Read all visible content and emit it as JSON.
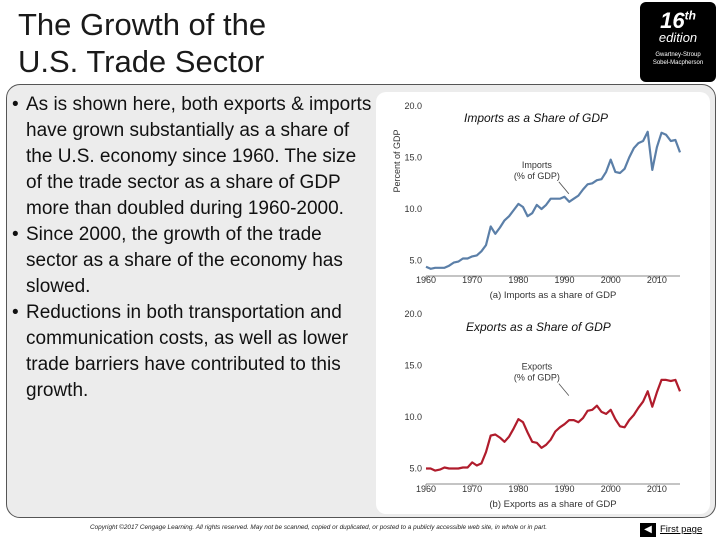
{
  "slide": {
    "title_line1": "The Growth of the",
    "title_line2": "U.S. Trade Sector"
  },
  "badge": {
    "number": "16",
    "suffix": "th",
    "edition": "edition",
    "authors_line1": "Gwartney-Stroup",
    "authors_line2": "Sobel-Macpherson"
  },
  "bullets": [
    "As is shown here, both exports & imports have grown substantially as a share of the U.S. economy since 1960. The size of the trade sector as a share of GDP more than doubled during 1960-2000.",
    "Since 2000, the growth of the trade sector as a share of the economy has slowed.",
    "Reductions in both transportation and communication costs, as well as lower trade barriers have contributed to this growth."
  ],
  "chart_headings": {
    "imports": "Imports as a Share of GDP",
    "exports": "Exports as a Share of GDP"
  },
  "footer": {
    "copyright": "Copyright ©2017 Cengage Learning. All rights reserved. May not be scanned, copied or duplicated, or posted to a publicly accessible web site, in whole or in part.",
    "first_page": "First page",
    "first_page_icon": "arrow-left-icon"
  },
  "colors": {
    "imports_line": "#5b7fa8",
    "exports_line": "#b01c2c",
    "panel": "#ececec"
  },
  "chart_data": [
    {
      "type": "line",
      "title": "(a) Imports as a share of GDP",
      "ylabel": "Percent of GDP",
      "xlabel": "",
      "x_ticks": [
        "1960",
        "1970",
        "1980",
        "1990",
        "2000",
        "2010"
      ],
      "y_ticks": [
        "20.0",
        "15.0",
        "10.0",
        "5.0"
      ],
      "xlim": [
        1960,
        2015
      ],
      "ylim": [
        3.5,
        20
      ],
      "series": [
        {
          "name": "Imports (% of GDP)",
          "x": [
            1960,
            1961,
            1962,
            1963,
            1964,
            1965,
            1966,
            1967,
            1968,
            1969,
            1970,
            1971,
            1972,
            1973,
            1974,
            1975,
            1976,
            1977,
            1978,
            1979,
            1980,
            1981,
            1982,
            1983,
            1984,
            1985,
            1986,
            1987,
            1988,
            1989,
            1990,
            1991,
            1992,
            1993,
            1994,
            1995,
            1996,
            1997,
            1998,
            1999,
            2000,
            2001,
            2002,
            2003,
            2004,
            2005,
            2006,
            2007,
            2008,
            2009,
            2010,
            2011,
            2012,
            2013,
            2014,
            2015
          ],
          "values": [
            4.4,
            4.2,
            4.3,
            4.3,
            4.3,
            4.5,
            4.8,
            4.9,
            5.2,
            5.2,
            5.4,
            5.5,
            5.9,
            6.5,
            8.3,
            7.6,
            8.2,
            8.9,
            9.3,
            9.9,
            10.5,
            10.2,
            9.3,
            9.6,
            10.4,
            10.0,
            10.4,
            11.0,
            11.0,
            11.0,
            11.2,
            10.7,
            11.0,
            11.3,
            11.9,
            12.4,
            12.5,
            12.8,
            12.9,
            13.6,
            14.8,
            13.6,
            13.5,
            13.9,
            15.0,
            15.9,
            16.4,
            16.6,
            17.5,
            13.8,
            16.0,
            17.4,
            17.2,
            16.6,
            16.7,
            15.5
          ]
        }
      ]
    },
    {
      "type": "line",
      "title": "(b) Exports as a share of GDP",
      "ylabel": "",
      "xlabel": "",
      "x_ticks": [
        "1960",
        "1970",
        "1980",
        "1990",
        "2000",
        "2010"
      ],
      "y_ticks": [
        "20.0",
        "15.0",
        "10.0",
        "5.0"
      ],
      "xlim": [
        1960,
        2015
      ],
      "ylim": [
        3.5,
        20
      ],
      "series": [
        {
          "name": "Exports (% of GDP)",
          "x": [
            1960,
            1961,
            1962,
            1963,
            1964,
            1965,
            1966,
            1967,
            1968,
            1969,
            1970,
            1971,
            1972,
            1973,
            1974,
            1975,
            1976,
            1977,
            1978,
            1979,
            1980,
            1981,
            1982,
            1983,
            1984,
            1985,
            1986,
            1987,
            1988,
            1989,
            1990,
            1991,
            1992,
            1993,
            1994,
            1995,
            1996,
            1997,
            1998,
            1999,
            2000,
            2001,
            2002,
            2003,
            2004,
            2005,
            2006,
            2007,
            2008,
            2009,
            2010,
            2011,
            2012,
            2013,
            2014,
            2015
          ],
          "values": [
            5.0,
            5.0,
            4.8,
            4.9,
            5.1,
            5.0,
            5.0,
            5.0,
            5.1,
            5.1,
            5.6,
            5.3,
            5.5,
            6.6,
            8.2,
            8.3,
            8.0,
            7.6,
            8.1,
            8.9,
            9.8,
            9.5,
            8.5,
            7.6,
            7.5,
            7.0,
            7.3,
            7.8,
            8.6,
            9.0,
            9.3,
            9.7,
            9.7,
            9.5,
            9.9,
            10.6,
            10.7,
            11.1,
            10.5,
            10.3,
            10.7,
            9.8,
            9.1,
            9.0,
            9.7,
            10.2,
            10.9,
            11.5,
            12.5,
            11.0,
            12.4,
            13.6,
            13.6,
            13.5,
            13.6,
            12.5
          ]
        }
      ]
    }
  ]
}
